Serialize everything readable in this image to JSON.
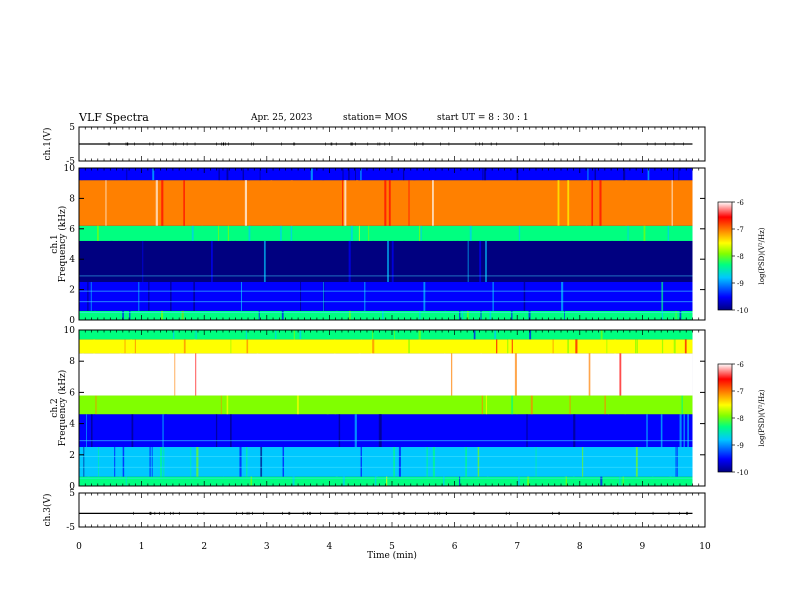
{
  "header": {
    "title": "VLF Spectra",
    "date": "Apr. 25, 2023",
    "station": "station= MOS",
    "start": "start  UT =   8  : 30 : 1"
  },
  "chart_data": {
    "type": "heatmap",
    "x": {
      "label": "Time  (min)",
      "range": [
        0,
        10
      ],
      "ticks": [
        "0",
        "1",
        "2",
        "3",
        "4",
        "5",
        "6",
        "7",
        "8",
        "9",
        "10"
      ]
    },
    "data_end_min": 9.8,
    "panels": [
      {
        "id": "ch1_waveform",
        "type": "line",
        "ylabel": "ch.1(V)",
        "ylim": [
          -5,
          5
        ],
        "yticks": [
          "5",
          "-5"
        ],
        "level": 0
      },
      {
        "id": "ch1_spectrogram",
        "type": "heatmap",
        "ylabel_top": "ch.1",
        "ylabel": "Frequency (kHz)",
        "ylim": [
          0,
          10
        ],
        "yticks": [
          "0",
          "2",
          "4",
          "6",
          "8",
          "10"
        ],
        "bands": [
          {
            "from": 0,
            "to": 0.6,
            "log_psd": -8.6
          },
          {
            "from": 0.6,
            "to": 2.5,
            "log_psd": -9.2
          },
          {
            "from": 2.5,
            "to": 5.2,
            "log_psd": -9.6
          },
          {
            "from": 5.2,
            "to": 6.2,
            "log_psd": -8.3
          },
          {
            "from": 6.2,
            "to": 9.2,
            "log_psd": -7.0
          },
          {
            "from": 9.2,
            "to": 10,
            "log_psd": -9.5
          }
        ]
      },
      {
        "id": "ch2_spectrogram",
        "type": "heatmap",
        "ylabel_top": "ch.2",
        "ylabel": "Frequency (kHz)",
        "ylim": [
          0,
          10
        ],
        "yticks": [
          "0",
          "2",
          "4",
          "6",
          "8",
          "10"
        ],
        "bands": [
          {
            "from": 0,
            "to": 0.6,
            "log_psd": -8.4
          },
          {
            "from": 0.6,
            "to": 2.5,
            "log_psd": -8.9
          },
          {
            "from": 2.5,
            "to": 4.6,
            "log_psd": -9.4
          },
          {
            "from": 4.6,
            "to": 5.8,
            "log_psd": -7.8
          },
          {
            "from": 5.8,
            "to": 8.5,
            "log_psd": -6.3
          },
          {
            "from": 8.5,
            "to": 9.4,
            "log_psd": -7.4
          },
          {
            "from": 9.4,
            "to": 10,
            "log_psd": -8.6
          }
        ]
      },
      {
        "id": "ch3_waveform",
        "type": "line",
        "ylabel": "ch.3(V)",
        "ylim": [
          -5,
          5
        ],
        "yticks": [
          "5",
          "-5"
        ],
        "level": -1
      }
    ],
    "colorbar": {
      "label": "log(PSD)(V²/Hz)",
      "range": [
        -10,
        -6
      ],
      "ticks": [
        "-6",
        "-7",
        "-8",
        "-9",
        "-10"
      ],
      "colors": [
        "#000080",
        "#0000ff",
        "#00c8ff",
        "#00ff80",
        "#80ff00",
        "#ffff00",
        "#ff8000",
        "#ff0000",
        "#ffffff"
      ]
    }
  }
}
